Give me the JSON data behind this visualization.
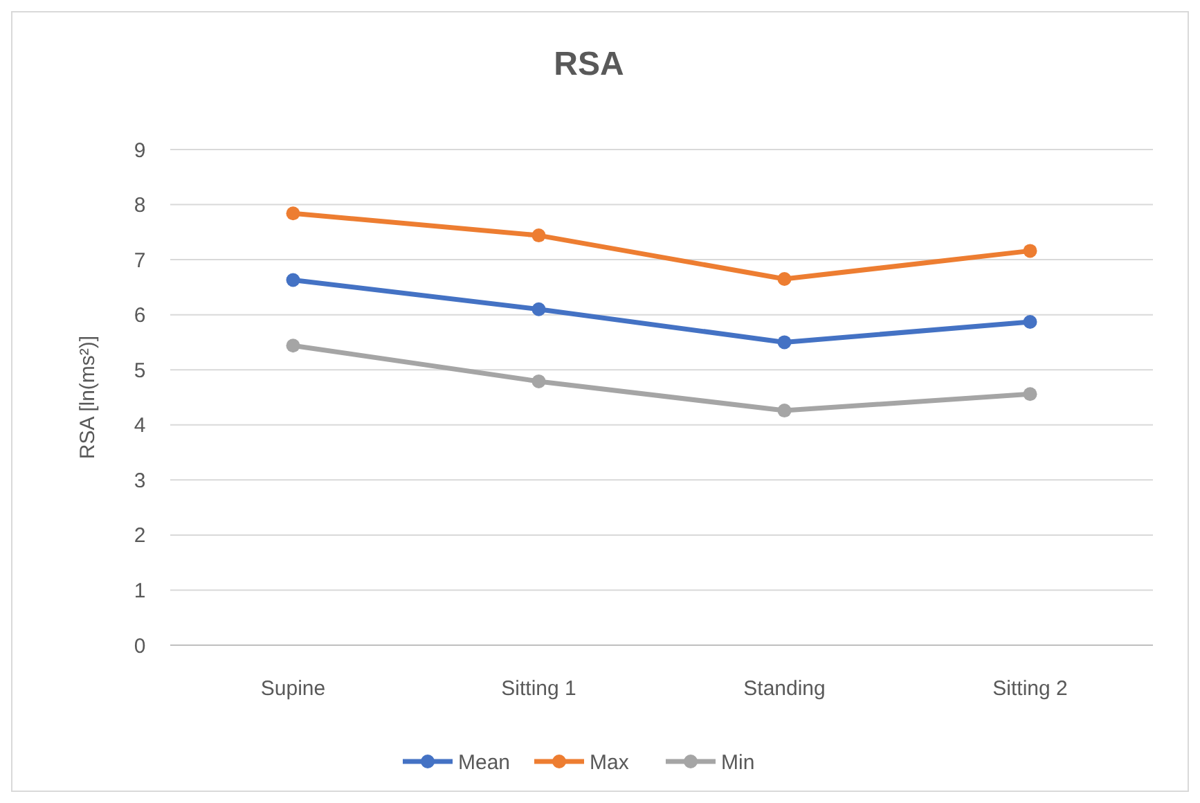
{
  "chart_data": {
    "type": "line",
    "title": "RSA",
    "ylabel": "RSA [ln(ms²)]",
    "categories": [
      "Supine",
      "Sitting 1",
      "Standing",
      "Sitting 2"
    ],
    "series": [
      {
        "name": "Mean",
        "color": "#4472c4",
        "values": [
          6.63,
          6.1,
          5.5,
          5.87
        ]
      },
      {
        "name": "Max",
        "color": "#ed7d31",
        "values": [
          7.84,
          7.44,
          6.65,
          7.16
        ]
      },
      {
        "name": "Min",
        "color": "#a5a5a5",
        "values": [
          5.44,
          4.79,
          4.26,
          4.56
        ]
      }
    ],
    "ylim": [
      0,
      9
    ],
    "yticks": [
      0,
      1,
      2,
      3,
      4,
      5,
      6,
      7,
      8,
      9
    ],
    "grid": "y",
    "legend": "bottom",
    "marker": "circle",
    "line_style": "solid"
  }
}
